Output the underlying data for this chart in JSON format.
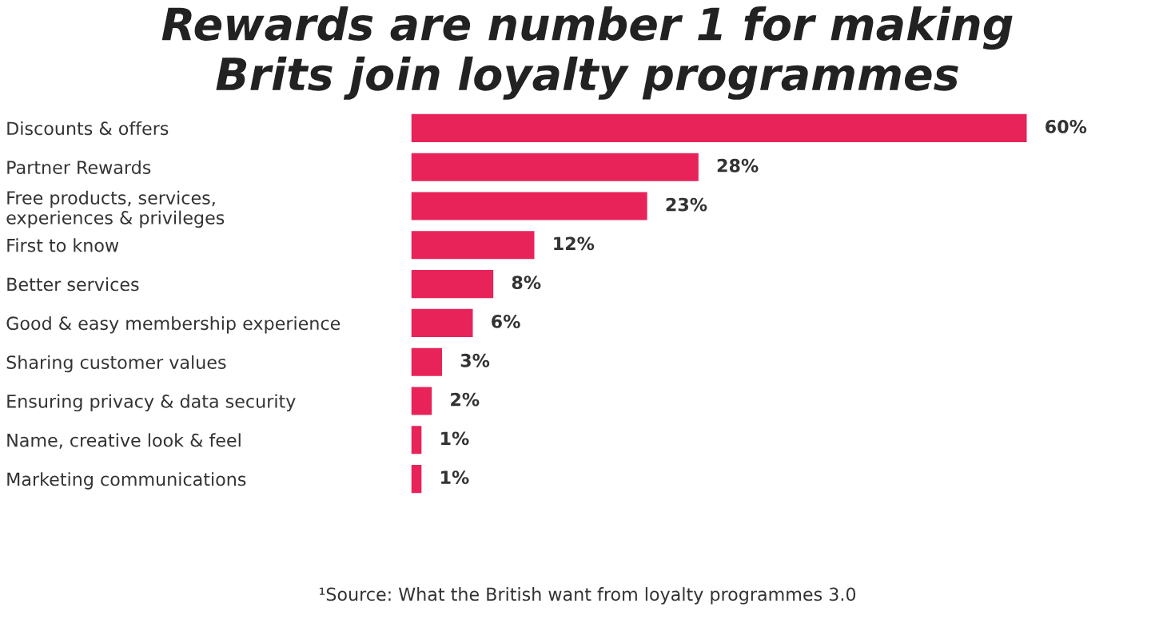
{
  "chart_data": {
    "type": "bar",
    "orientation": "horizontal",
    "title": "Rewards are number 1 for making\nBrits join loyalty programmes",
    "categories": [
      "Discounts & offers",
      "Partner Rewards",
      "Free products, services,\nexperiences & privileges",
      "First to know",
      "Better services",
      "Good & easy membership experience",
      "Sharing customer values",
      "Ensuring privacy & data security",
      "Name, creative look & feel",
      "Marketing communications"
    ],
    "values": [
      60,
      28,
      23,
      12,
      8,
      6,
      3,
      2,
      1,
      1
    ],
    "value_labels": [
      "60%",
      "28%",
      "23%",
      "12%",
      "8%",
      "6%",
      "3%",
      "2%",
      "1%",
      "1%"
    ],
    "color": "#e8235a",
    "tick_labels": false,
    "annotations": [
      "¹Source: What the British want from loyalty programmes 3.0"
    ]
  }
}
